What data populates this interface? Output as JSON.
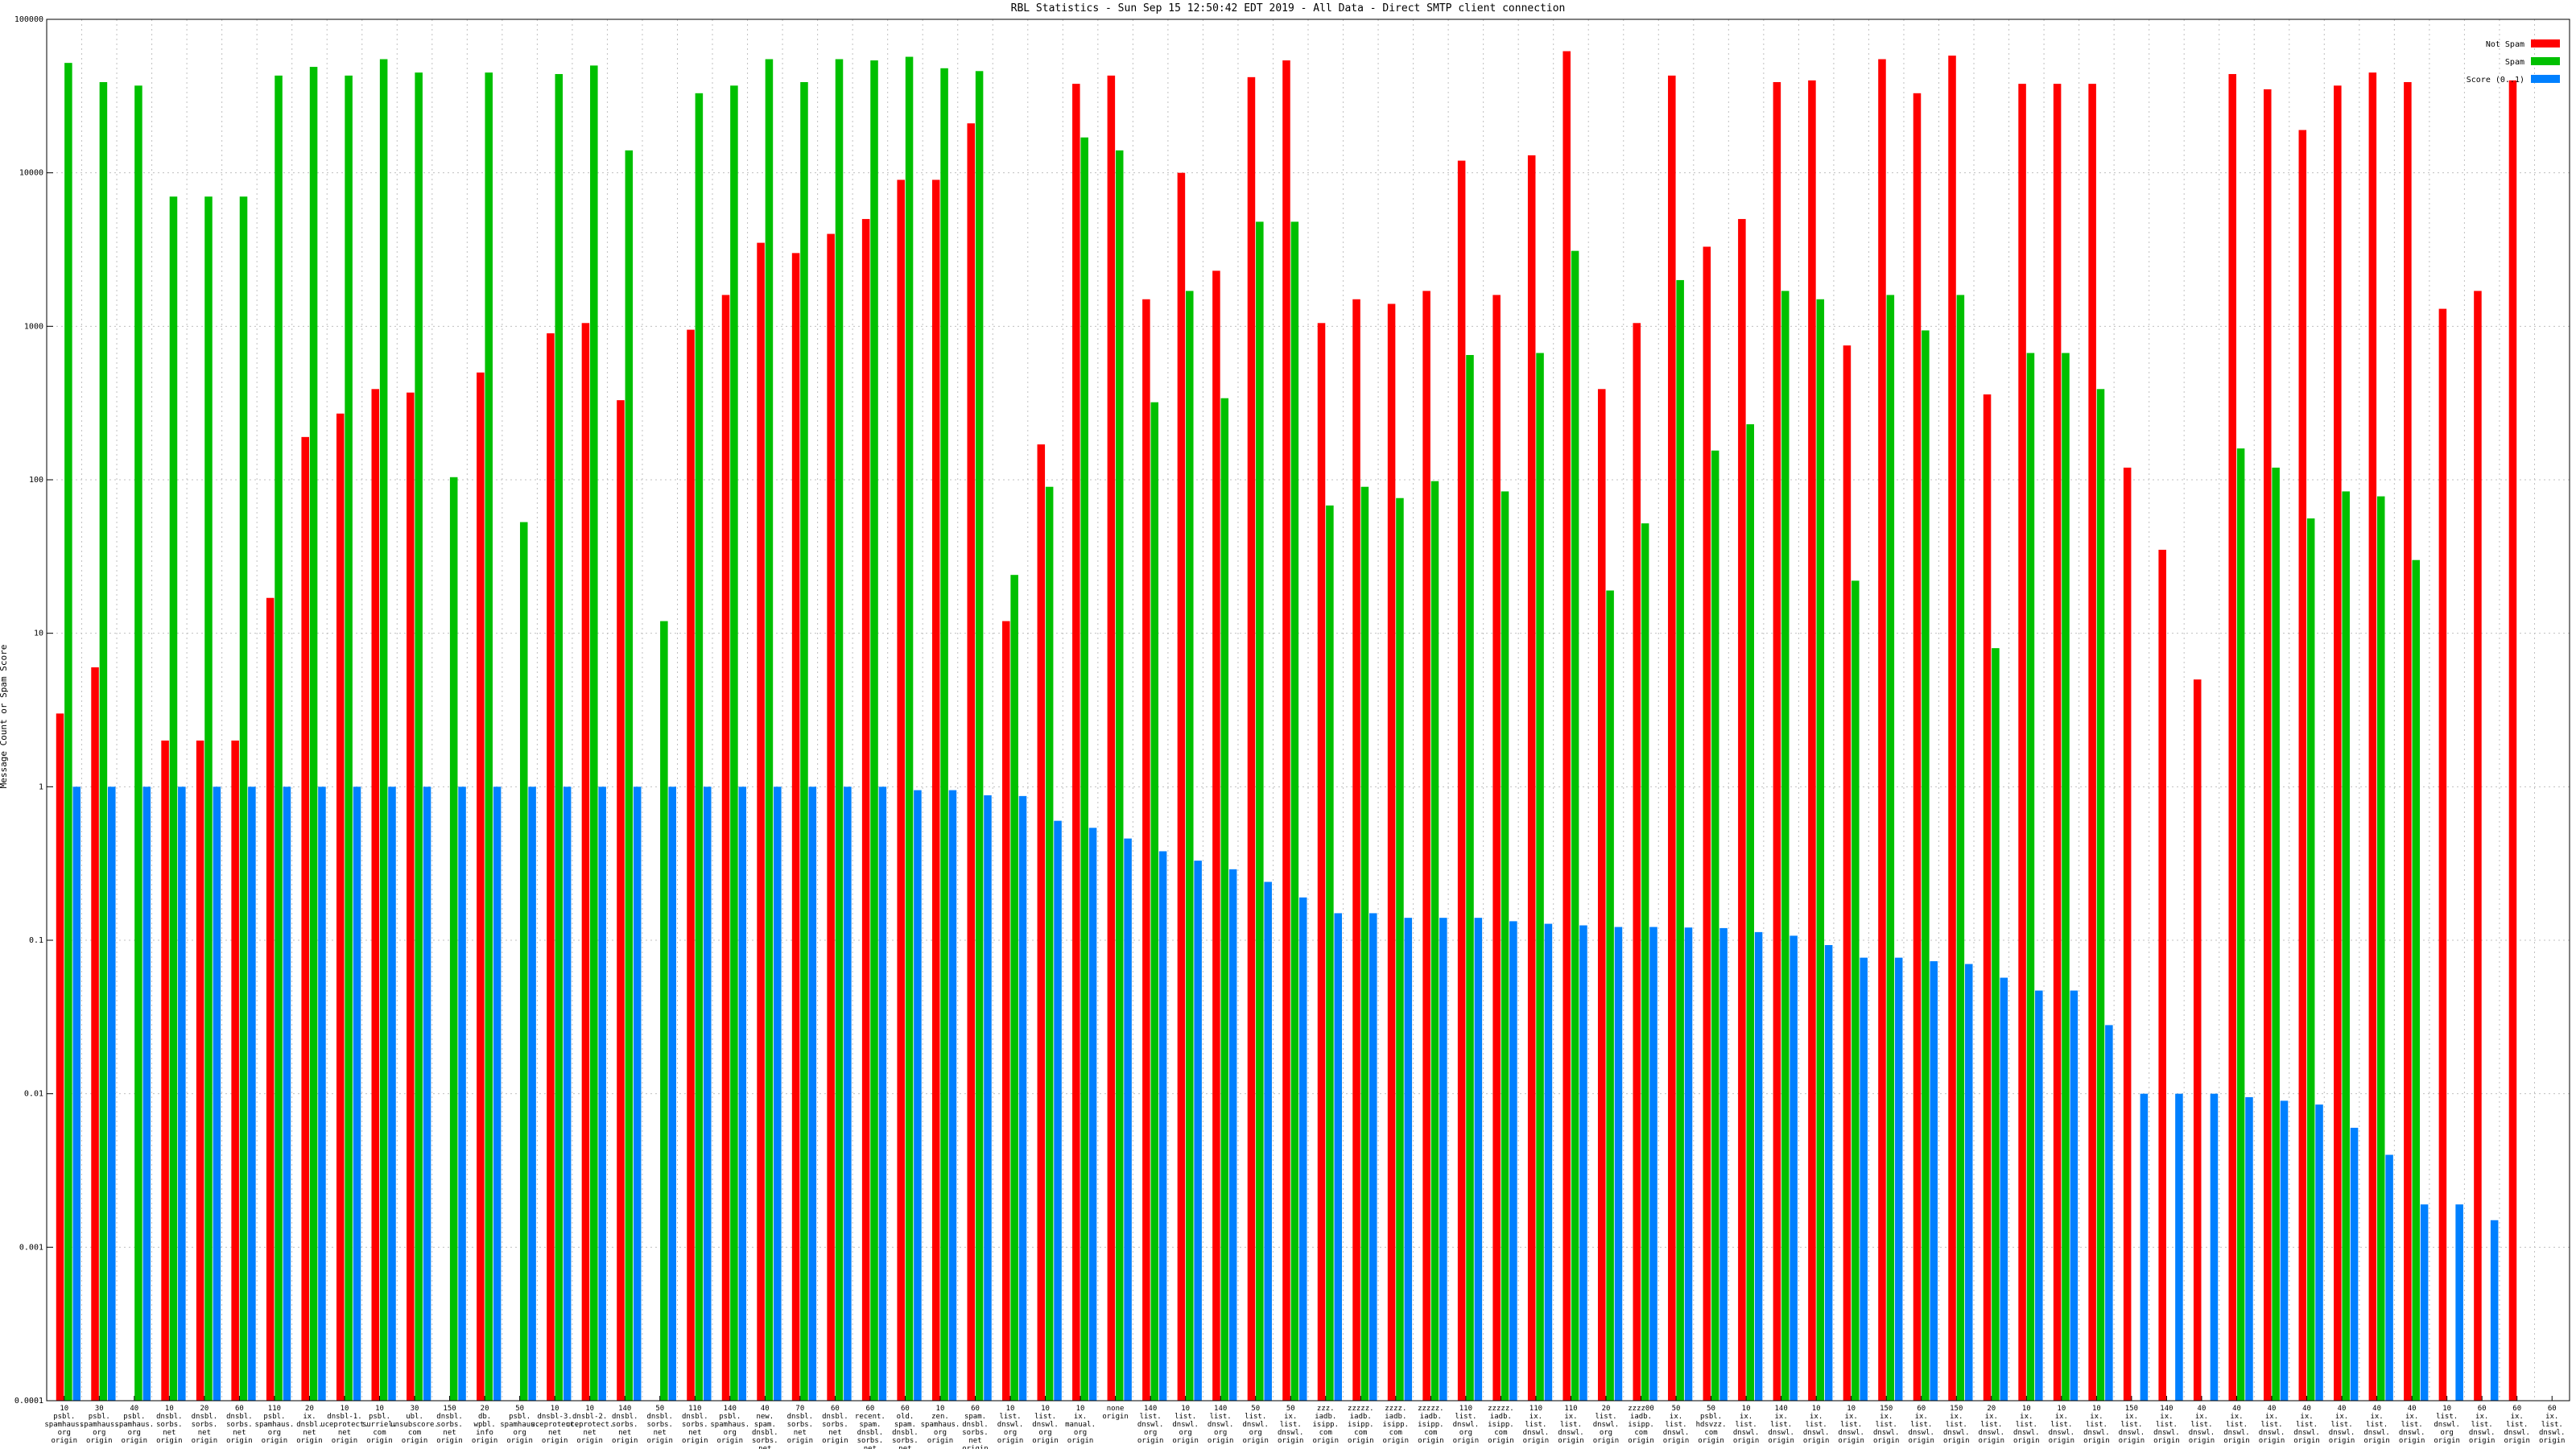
{
  "colors": {
    "not_spam": "#ff0000",
    "spam": "#00c000",
    "score": "#0080ff",
    "grid": "#c0c0c0",
    "axis": "#000000"
  },
  "chart_data": {
    "type": "bar",
    "title": "RBL Statistics - Sun Sep 15 12:50:42 EDT 2019 - All Data - Direct SMTP client connection",
    "ylabel": "Message Count or Spam Score",
    "xlabel": "",
    "yscale": "log",
    "ylim": [
      0.0001,
      100000
    ],
    "grid": true,
    "legend_position": "top-right",
    "yticks": [
      "0.0001",
      "0.001",
      "0.01",
      "0.1",
      "1",
      "10",
      "100",
      "1000",
      "10000",
      "100000"
    ],
    "categories": [
      [
        "10",
        "psbl.",
        "spamhaus.",
        "org",
        "origin"
      ],
      [
        "30",
        "psbl.",
        "spamhaus.",
        "org",
        "origin"
      ],
      [
        "40",
        "psbl.",
        "spamhaus.",
        "org",
        "origin"
      ],
      [
        "10",
        "dnsbl.",
        "sorbs.",
        "net",
        "origin"
      ],
      [
        "20",
        "dnsbl.",
        "sorbs.",
        "net",
        "origin"
      ],
      [
        "60",
        "dnsbl.",
        "sorbs.",
        "net",
        "origin"
      ],
      [
        "110",
        "psbl.",
        "spamhaus.",
        "org",
        "origin"
      ],
      [
        "20",
        "ix.",
        "dnsbl.",
        "net",
        "origin"
      ],
      [
        "10",
        "dnsbl-1.",
        "uceprotect.",
        "net",
        "origin"
      ],
      [
        "10",
        "psbl.",
        "surriel.",
        "com",
        "origin"
      ],
      [
        "30",
        "ubl.",
        "unsubscore.",
        "com",
        "origin"
      ],
      [
        "150",
        "dnsbl.",
        "sorbs.",
        "net",
        "origin"
      ],
      [
        "20",
        "db.",
        "wpbl.",
        "info",
        "origin"
      ],
      [
        "50",
        "psbl.",
        "spamhaus.",
        "org",
        "origin"
      ],
      [
        "10",
        "dnsbl-3.",
        "uceprotect.",
        "net",
        "origin"
      ],
      [
        "10",
        "dnsbl-2.",
        "uceprotect.",
        "net",
        "origin"
      ],
      [
        "140",
        "dnsbl.",
        "sorbs.",
        "net",
        "origin"
      ],
      [
        "50",
        "dnsbl.",
        "sorbs.",
        "net",
        "origin"
      ],
      [
        "110",
        "dnsbl.",
        "sorbs.",
        "net",
        "origin"
      ],
      [
        "140",
        "psbl.",
        "spamhaus.",
        "org",
        "origin"
      ],
      [
        "40",
        "new.",
        "spam.",
        "dnsbl.",
        "sorbs.",
        "net",
        "origin"
      ],
      [
        "70",
        "dnsbl.",
        "sorbs.",
        "net",
        "origin"
      ],
      [
        "60",
        "dnsbl.",
        "sorbs.",
        "net",
        "origin"
      ],
      [
        "60",
        "recent.",
        "spam.",
        "dnsbl.",
        "sorbs.",
        "net",
        "origin"
      ],
      [
        "60",
        "old.",
        "spam.",
        "dnsbl.",
        "sorbs.",
        "net",
        "origin"
      ],
      [
        "10",
        "zen.",
        "spamhaus.",
        "org",
        "origin"
      ],
      [
        "60",
        "spam.",
        "dnsbl.",
        "sorbs.",
        "net",
        "origin"
      ],
      [
        "10",
        "list.",
        "dnswl.",
        "org",
        "origin"
      ],
      [
        "10",
        "list.",
        "dnswl.",
        "org",
        "origin"
      ],
      [
        "10",
        "ix.",
        "manual.",
        "org",
        "origin"
      ],
      [
        "none",
        "origin"
      ],
      [
        "140",
        "list.",
        "dnswl.",
        "org",
        "origin"
      ],
      [
        "10",
        "list.",
        "dnswl.",
        "org",
        "origin"
      ],
      [
        "140",
        "list.",
        "dnswl.",
        "org",
        "origin"
      ],
      [
        "50",
        "list.",
        "dnswl.",
        "org",
        "origin"
      ],
      [
        "50",
        "ix.",
        "list.",
        "dnswl.",
        "origin"
      ],
      [
        "zzz.",
        "iadb.",
        "isipp.",
        "com",
        "origin"
      ],
      [
        "zzzzz.",
        "iadb.",
        "isipp.",
        "com",
        "origin"
      ],
      [
        "zzzz.",
        "iadb.",
        "isipp.",
        "com",
        "origin"
      ],
      [
        "zzzzz.",
        "iadb.",
        "isipp.",
        "com",
        "origin"
      ],
      [
        "110",
        "list.",
        "dnswl.",
        "org",
        "origin"
      ],
      [
        "zzzzz.",
        "iadb.",
        "isipp.",
        "com",
        "origin"
      ],
      [
        "110",
        "ix.",
        "list.",
        "dnswl.",
        "origin"
      ],
      [
        "110",
        "ix.",
        "list.",
        "dnswl.",
        "origin"
      ],
      [
        "20",
        "list.",
        "dnswl.",
        "org",
        "origin"
      ],
      [
        "zzzz00",
        "iadb.",
        "isipp.",
        "com",
        "origin"
      ],
      [
        "50",
        "ix.",
        "list.",
        "dnswl.",
        "origin"
      ],
      [
        "50",
        "psbl.",
        "hdsvzz.",
        "com",
        "origin"
      ],
      [
        "10",
        "ix.",
        "list.",
        "dnswl.",
        "origin"
      ],
      [
        "140",
        "ix.",
        "list.",
        "dnswl.",
        "origin"
      ],
      [
        "10",
        "ix.",
        "list.",
        "dnswl.",
        "origin"
      ],
      [
        "10",
        "ix.",
        "list.",
        "dnswl.",
        "origin"
      ],
      [
        "150",
        "ix.",
        "list.",
        "dnswl.",
        "origin"
      ],
      [
        "60",
        "ix.",
        "list.",
        "dnswl.",
        "origin"
      ],
      [
        "150",
        "ix.",
        "list.",
        "dnswl.",
        "origin"
      ],
      [
        "20",
        "ix.",
        "list.",
        "dnswl.",
        "origin"
      ],
      [
        "10",
        "ix.",
        "list.",
        "dnswl.",
        "origin"
      ],
      [
        "10",
        "ix.",
        "list.",
        "dnswl.",
        "origin"
      ],
      [
        "10",
        "ix.",
        "list.",
        "dnswl.",
        "origin"
      ],
      [
        "150",
        "ix.",
        "list.",
        "dnswl.",
        "origin"
      ],
      [
        "140",
        "ix.",
        "list.",
        "dnswl.",
        "origin"
      ],
      [
        "40",
        "ix.",
        "list.",
        "dnswl.",
        "origin"
      ],
      [
        "40",
        "ix.",
        "list.",
        "dnswl.",
        "origin"
      ],
      [
        "40",
        "ix.",
        "list.",
        "dnswl.",
        "origin"
      ],
      [
        "40",
        "ix.",
        "list.",
        "dnswl.",
        "origin"
      ],
      [
        "40",
        "ix.",
        "list.",
        "dnswl.",
        "origin"
      ],
      [
        "40",
        "ix.",
        "list.",
        "dnswl.",
        "origin"
      ],
      [
        "40",
        "ix.",
        "list.",
        "dnswl.",
        "origin"
      ],
      [
        "10",
        "list.",
        "dnswl.",
        "org",
        "origin"
      ],
      [
        "60",
        "ix.",
        "list.",
        "dnswl.",
        "origin"
      ],
      [
        "60",
        "ix.",
        "list.",
        "dnswl.",
        "origin"
      ],
      [
        "60",
        "ix.",
        "list.",
        "dnswl.",
        "origin"
      ]
    ],
    "series": [
      {
        "name": "Not Spam",
        "values": [
          3,
          6,
          null,
          2,
          2,
          2,
          17,
          190,
          270,
          390,
          370,
          null,
          500,
          null,
          900,
          1050,
          330,
          null,
          950,
          1600,
          3500,
          3000,
          4000,
          5000,
          9000,
          9000,
          21000,
          12,
          170,
          38000,
          43000,
          1500,
          10000,
          2300,
          42000,
          54000,
          1050,
          1500,
          1400,
          1700,
          12000,
          1600,
          13000,
          62000,
          390,
          1050,
          43000,
          3300,
          5000,
          39000,
          40000,
          750,
          55000,
          33000,
          58000,
          360,
          38000,
          38000,
          38000,
          120,
          35,
          5,
          44000,
          35000,
          19000,
          37000,
          45000,
          39000,
          1300,
          1700,
          40000,
          null
        ],
        "color": "#ff0000"
      },
      {
        "name": "Spam",
        "values": [
          52000,
          39000,
          37000,
          7000,
          7000,
          7000,
          43000,
          49000,
          43000,
          55000,
          45000,
          104,
          45000,
          53,
          44000,
          50000,
          14000,
          12,
          33000,
          37000,
          55000,
          39000,
          55000,
          54000,
          57000,
          48000,
          46000,
          24,
          90,
          17000,
          14000,
          320,
          1700,
          340,
          4800,
          4800,
          68,
          90,
          76,
          98,
          650,
          84,
          670,
          3100,
          19,
          52,
          2000,
          155,
          230,
          1700,
          1500,
          22,
          1600,
          940,
          1600,
          8,
          670,
          670,
          390,
          null,
          null,
          null,
          160,
          120,
          56,
          84,
          78,
          30,
          null,
          null,
          null,
          null
        ],
        "color": "#00c000"
      },
      {
        "name": "Score (0..1)",
        "values": [
          1,
          1,
          1,
          1,
          1,
          1,
          1,
          1,
          1,
          1,
          1,
          1,
          1,
          1,
          1,
          1,
          1,
          1,
          1,
          1,
          1,
          1,
          1,
          1,
          0.95,
          0.95,
          0.88,
          0.87,
          0.6,
          0.54,
          0.46,
          0.38,
          0.33,
          0.29,
          0.24,
          0.19,
          0.15,
          0.15,
          0.14,
          0.14,
          0.14,
          0.133,
          0.128,
          0.125,
          0.122,
          0.122,
          0.121,
          0.12,
          0.113,
          0.107,
          0.093,
          0.077,
          0.077,
          0.073,
          0.07,
          0.057,
          0.047,
          0.047,
          0.028,
          0.01,
          0.01,
          0.01,
          0.0095,
          0.009,
          0.0085,
          0.006,
          0.004,
          0.0019,
          0.0019,
          0.0015,
          null,
          null
        ],
        "color": "#0080ff"
      }
    ]
  }
}
